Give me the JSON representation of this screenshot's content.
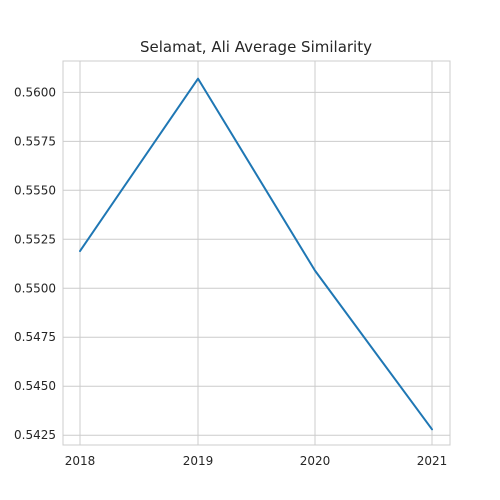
{
  "chart_data": {
    "type": "line",
    "title": "Selamat, Ali Average Similarity",
    "xlabel": "",
    "ylabel": "",
    "x": [
      "2018",
      "2019",
      "2020",
      "2021"
    ],
    "series": [
      {
        "values": [
          0.5519,
          0.5607,
          0.5509,
          0.5428
        ]
      }
    ],
    "ylim": [
      0.542,
      0.5616
    ],
    "yticks": [
      "0.5425",
      "0.5450",
      "0.5475",
      "0.5500",
      "0.5525",
      "0.5550",
      "0.5575",
      "0.5600"
    ],
    "grid": true,
    "legend": "none"
  },
  "colors": {
    "line": "#1f77b4",
    "grid": "#cccccc",
    "axes_edge": "#cccccc",
    "text": "#262626"
  }
}
